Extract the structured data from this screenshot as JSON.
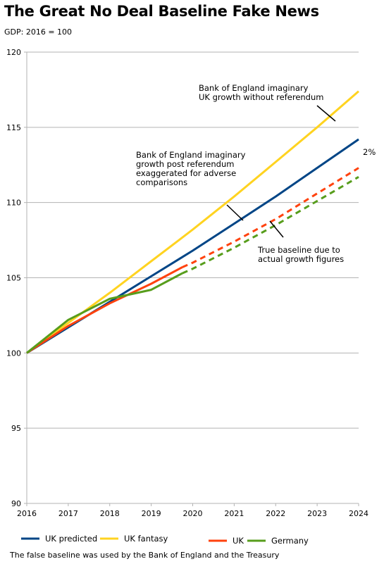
{
  "title": "The Great No Deal Baseline Fake News",
  "subtitle": "GDP: 2016 = 100",
  "footnote": "The false baseline was used by the Bank of England and the Treasury",
  "chart_data": {
    "type": "line",
    "title": "The Great No Deal Baseline Fake News",
    "subtitle": "GDP: 2016 = 100",
    "xlabel": "",
    "ylabel": "",
    "x": [
      2016,
      2017,
      2018,
      2019,
      2020,
      2021,
      2022,
      2023,
      2024
    ],
    "xlim": [
      2016,
      2024
    ],
    "ylim": [
      90,
      120
    ],
    "yticks": [
      90,
      95,
      100,
      105,
      110,
      115,
      120
    ],
    "grid": "horizontal",
    "legend_position": "bottom",
    "series": [
      {
        "name": "UK predicted",
        "color": "#004586",
        "style": "solid",
        "points": [
          [
            2016,
            100
          ],
          [
            2017,
            101.7
          ],
          [
            2018,
            103.4
          ],
          [
            2019,
            105.1
          ],
          [
            2020,
            106.8
          ],
          [
            2021,
            108.6
          ],
          [
            2022,
            110.4
          ],
          [
            2023,
            112.3
          ],
          [
            2024,
            114.2
          ]
        ]
      },
      {
        "name": "UK fantasy",
        "color": "#ffd320",
        "style": "solid",
        "points": [
          [
            2016,
            100
          ],
          [
            2017,
            102.0
          ],
          [
            2018,
            104.0
          ],
          [
            2019,
            106.1
          ],
          [
            2020,
            108.2
          ],
          [
            2021,
            110.4
          ],
          [
            2022,
            112.7
          ],
          [
            2023,
            115.0
          ],
          [
            2024,
            117.4
          ]
        ]
      },
      {
        "name": "UK",
        "color": "#ff420e",
        "style": "solid",
        "points": [
          [
            2016,
            100
          ],
          [
            2017,
            101.8
          ],
          [
            2018,
            103.3
          ],
          [
            2019,
            104.6
          ],
          [
            2019.75,
            105.7
          ]
        ]
      },
      {
        "name": "UK",
        "color": "#ff420e",
        "style": "dashed",
        "points": [
          [
            2019.75,
            105.7
          ],
          [
            2020,
            106.0
          ],
          [
            2021,
            107.4
          ],
          [
            2022,
            108.9
          ],
          [
            2023,
            110.6
          ],
          [
            2024,
            112.3
          ]
        ]
      },
      {
        "name": "Germany",
        "color": "#579d1c",
        "style": "solid",
        "points": [
          [
            2016,
            100
          ],
          [
            2017,
            102.2
          ],
          [
            2018,
            103.6
          ],
          [
            2019,
            104.2
          ],
          [
            2019.75,
            105.3
          ]
        ]
      },
      {
        "name": "Germany",
        "color": "#579d1c",
        "style": "dashed",
        "points": [
          [
            2019.75,
            105.3
          ],
          [
            2020,
            105.6
          ],
          [
            2021,
            107.0
          ],
          [
            2022,
            108.5
          ],
          [
            2023,
            110.1
          ],
          [
            2024,
            111.7
          ]
        ]
      }
    ],
    "legend": [
      {
        "name": "UK predicted",
        "color": "#004586"
      },
      {
        "name": "UK fantasy",
        "color": "#ffd320"
      },
      {
        "name": "UK",
        "color": "#ff420e"
      },
      {
        "name": "Germany",
        "color": "#579d1c"
      }
    ],
    "annotations": [
      {
        "lines": [
          "Bank of England imaginary",
          "UK growth without referendum"
        ],
        "point_to": [
          2023,
          114.9
        ]
      },
      {
        "lines": [
          "Bank of England imaginary",
          "growth post referendum",
          "exaggerated for adverse",
          "comparisons"
        ],
        "point_to": [
          2021,
          108.6
        ]
      },
      {
        "lines": [
          "True baseline due to",
          "actual growth figures"
        ],
        "point_to": [
          2022,
          108.6
        ]
      },
      {
        "lines": [
          "2%"
        ],
        "point_to": null
      }
    ]
  }
}
